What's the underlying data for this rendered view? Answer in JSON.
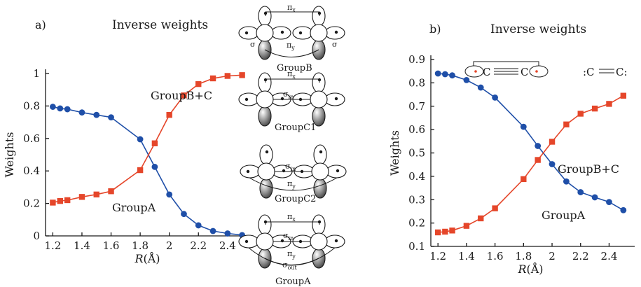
{
  "panels": {
    "a": {
      "letter": "a)",
      "title": "Inverse weights"
    },
    "b": {
      "letter": "b)",
      "title": "Inverse weights"
    }
  },
  "colors": {
    "groupA": "#1f4fa8",
    "groupBC": "#e5462a"
  },
  "chart_data": [
    {
      "type": "line",
      "title": "Inverse weights",
      "xlabel": "R(Å)",
      "ylabel": "Weights",
      "xlim": [
        1.15,
        2.55
      ],
      "ylim": [
        0,
        1
      ],
      "xticks": [
        1.2,
        1.4,
        1.6,
        1.8,
        2,
        2.2,
        2.4
      ],
      "xtick_labels": [
        "1.2",
        "1.4",
        "1.6",
        "1.8",
        "2",
        "2.2",
        "2.4"
      ],
      "yticks": [
        0,
        0.2,
        0.4,
        0.6,
        0.8,
        1
      ],
      "ytick_labels": [
        "0",
        "0.2",
        "0.4",
        "0.6",
        "0.8",
        "1"
      ],
      "grid": false,
      "x": [
        1.2,
        1.25,
        1.3,
        1.4,
        1.5,
        1.6,
        1.8,
        1.9,
        2.0,
        2.1,
        2.2,
        2.3,
        2.4,
        2.5
      ],
      "series": [
        {
          "name": "GroupA",
          "color": "#1f4fa8",
          "marker": "circle",
          "values": [
            0.795,
            0.785,
            0.78,
            0.76,
            0.745,
            0.73,
            0.595,
            0.425,
            0.255,
            0.135,
            0.065,
            0.03,
            0.015,
            0.005
          ]
        },
        {
          "name": "GroupB+C",
          "color": "#e5462a",
          "marker": "square",
          "values": [
            0.205,
            0.215,
            0.22,
            0.24,
            0.255,
            0.275,
            0.405,
            0.57,
            0.745,
            0.865,
            0.935,
            0.97,
            0.985,
            0.99
          ]
        }
      ]
    },
    {
      "type": "line",
      "title": "Inverse weights",
      "xlabel": "R(Å)",
      "ylabel": "Weights",
      "xlim": [
        1.15,
        2.55
      ],
      "ylim": [
        0.1,
        0.9
      ],
      "xticks": [
        1.2,
        1.4,
        1.6,
        1.8,
        2,
        2.2,
        2.4
      ],
      "xtick_labels": [
        "1.2",
        "1.4",
        "1.6",
        "1.8",
        "2",
        "2.2",
        "2.4"
      ],
      "yticks": [
        0.1,
        0.2,
        0.3,
        0.4,
        0.5,
        0.6,
        0.7,
        0.8,
        0.9
      ],
      "ytick_labels": [
        "0.1",
        "0.2",
        "0.3",
        "0.4",
        "0.5",
        "0.6",
        "0.7",
        "0.8",
        "0.9"
      ],
      "grid": false,
      "x": [
        1.2,
        1.25,
        1.3,
        1.4,
        1.5,
        1.6,
        1.8,
        1.9,
        2.0,
        2.1,
        2.2,
        2.3,
        2.4,
        2.5
      ],
      "series": [
        {
          "name": "GroupA",
          "color": "#1f4fa8",
          "marker": "circle",
          "values": [
            0.84,
            0.837,
            0.832,
            0.812,
            0.78,
            0.737,
            0.612,
            0.53,
            0.452,
            0.378,
            0.332,
            0.31,
            0.29,
            0.255
          ]
        },
        {
          "name": "GroupB+C",
          "color": "#e5462a",
          "marker": "square",
          "values": [
            0.16,
            0.163,
            0.168,
            0.188,
            0.22,
            0.263,
            0.388,
            0.47,
            0.548,
            0.622,
            0.668,
            0.69,
            0.71,
            0.745
          ]
        }
      ]
    }
  ],
  "annotations_b": {
    "c1": "C",
    "c2": "C",
    "lewis": ":C",
    "lewis2": "C:"
  },
  "diagrams": [
    {
      "name": "GroupB",
      "labels": [
        "πx",
        "σ",
        "πy",
        "σ"
      ]
    },
    {
      "name": "GroupC1",
      "labels": [
        "πx",
        "σin"
      ]
    },
    {
      "name": "GroupC2",
      "labels": [
        "σin",
        "πy"
      ]
    },
    {
      "name": "GroupA",
      "labels": [
        "πx",
        "σin",
        "πy",
        "σout"
      ]
    }
  ]
}
